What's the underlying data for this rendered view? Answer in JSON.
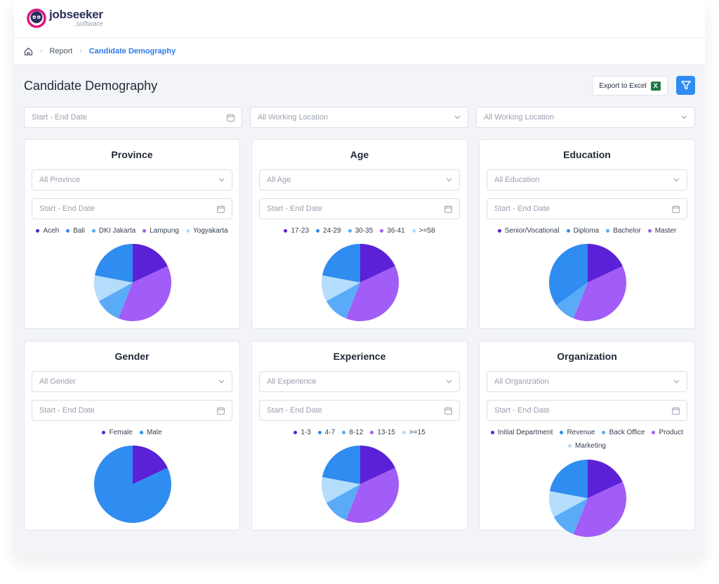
{
  "brand": {
    "name": "jobseeker",
    "sub": ".software"
  },
  "breadcrumb": {
    "items": [
      "Report",
      "Candidate Demography"
    ]
  },
  "page": {
    "title": "Candidate Demography",
    "export_label": "Export to Excel"
  },
  "filters": {
    "date_placeholder": "Start - End Date",
    "location1_placeholder": "All Working Location",
    "location2_placeholder": "All Working Location"
  },
  "colors": {
    "c1": "#5b21d6",
    "c2": "#a25cf7",
    "c3": "#5aabf7",
    "c4": "#b4dcfb",
    "c5": "#2f8cf0",
    "accent": "#2f7be8"
  },
  "cards": [
    {
      "title": "Province",
      "select_placeholder": "All Province",
      "date_placeholder": "Start - End Date",
      "legend": [
        {
          "label": "Aceh",
          "color": "#5b21d6"
        },
        {
          "label": "Bali",
          "color": "#2f8cf0"
        },
        {
          "label": "DKI Jakarta",
          "color": "#5aabf7"
        },
        {
          "label": "Lampung",
          "color": "#a25cf7"
        },
        {
          "label": "Yogyakarta",
          "color": "#b4dcfb"
        }
      ],
      "chart_data": {
        "type": "pie",
        "slices": [
          {
            "label": "Aceh",
            "value": 18,
            "color": "#5b21d6"
          },
          {
            "label": "Lampung",
            "value": 38,
            "color": "#a25cf7"
          },
          {
            "label": "DKI Jakarta",
            "value": 11,
            "color": "#5aabf7"
          },
          {
            "label": "Yogyakarta",
            "value": 11,
            "color": "#b4dcfb"
          },
          {
            "label": "Bali",
            "value": 22,
            "color": "#2f8cf0"
          }
        ]
      }
    },
    {
      "title": "Age",
      "select_placeholder": "All Age",
      "date_placeholder": "Start - End Date",
      "legend": [
        {
          "label": "17-23",
          "color": "#5b21d6"
        },
        {
          "label": "24-29",
          "color": "#2f8cf0"
        },
        {
          "label": "30-35",
          "color": "#5aabf7"
        },
        {
          "label": "36-41",
          "color": "#a25cf7"
        },
        {
          "label": ">=58",
          "color": "#b4dcfb"
        }
      ],
      "chart_data": {
        "type": "pie",
        "slices": [
          {
            "label": "17-23",
            "value": 18,
            "color": "#5b21d6"
          },
          {
            "label": "36-41",
            "value": 38,
            "color": "#a25cf7"
          },
          {
            "label": "30-35",
            "value": 11,
            "color": "#5aabf7"
          },
          {
            "label": ">=58",
            "value": 11,
            "color": "#b4dcfb"
          },
          {
            "label": "24-29",
            "value": 22,
            "color": "#2f8cf0"
          }
        ]
      }
    },
    {
      "title": "Education",
      "select_placeholder": "All Education",
      "date_placeholder": "Start - End Date",
      "legend": [
        {
          "label": "Senior/Vocational",
          "color": "#5b21d6"
        },
        {
          "label": "Diploma",
          "color": "#2f8cf0"
        },
        {
          "label": "Bachelor",
          "color": "#5aabf7"
        },
        {
          "label": "Master",
          "color": "#a25cf7"
        }
      ],
      "chart_data": {
        "type": "pie",
        "slices": [
          {
            "label": "Senior/Vocational",
            "value": 18,
            "color": "#5b21d6"
          },
          {
            "label": "Master",
            "value": 38,
            "color": "#a25cf7"
          },
          {
            "label": "Bachelor",
            "value": 9,
            "color": "#5aabf7"
          },
          {
            "label": "Diploma",
            "value": 35,
            "color": "#2f8cf0"
          }
        ]
      }
    },
    {
      "title": "Gender",
      "select_placeholder": "All Gender",
      "date_placeholder": "Start - End Date",
      "legend": [
        {
          "label": "Female",
          "color": "#5b21d6"
        },
        {
          "label": "Male",
          "color": "#2f8cf0"
        }
      ],
      "chart_data": {
        "type": "pie",
        "slices": [
          {
            "label": "Female",
            "value": 18,
            "color": "#5b21d6"
          },
          {
            "label": "Male",
            "value": 82,
            "color": "#2f8cf0"
          }
        ]
      }
    },
    {
      "title": "Experience",
      "select_placeholder": "All Experience",
      "date_placeholder": "Start - End Date",
      "legend": [
        {
          "label": "1-3",
          "color": "#5b21d6"
        },
        {
          "label": "4-7",
          "color": "#2f8cf0"
        },
        {
          "label": "8-12",
          "color": "#5aabf7"
        },
        {
          "label": "13-15",
          "color": "#a25cf7"
        },
        {
          "label": ">=15",
          "color": "#b4dcfb"
        }
      ],
      "chart_data": {
        "type": "pie",
        "slices": [
          {
            "label": "1-3",
            "value": 18,
            "color": "#5b21d6"
          },
          {
            "label": "13-15",
            "value": 38,
            "color": "#a25cf7"
          },
          {
            "label": "8-12",
            "value": 11,
            "color": "#5aabf7"
          },
          {
            "label": ">=15",
            "value": 11,
            "color": "#b4dcfb"
          },
          {
            "label": "4-7",
            "value": 22,
            "color": "#2f8cf0"
          }
        ]
      }
    },
    {
      "title": "Organization",
      "select_placeholder": "All Organization",
      "date_placeholder": "Start - End Date",
      "legend": [
        {
          "label": "Initial Department",
          "color": "#5b21d6"
        },
        {
          "label": "Revenue",
          "color": "#2f8cf0"
        },
        {
          "label": "Back Office",
          "color": "#5aabf7"
        },
        {
          "label": "Product",
          "color": "#a25cf7"
        },
        {
          "label": "Marketing",
          "color": "#b4dcfb"
        }
      ],
      "chart_data": {
        "type": "pie",
        "slices": [
          {
            "label": "Initial Department",
            "value": 18,
            "color": "#5b21d6"
          },
          {
            "label": "Product",
            "value": 38,
            "color": "#a25cf7"
          },
          {
            "label": "Back Office",
            "value": 11,
            "color": "#5aabf7"
          },
          {
            "label": "Marketing",
            "value": 11,
            "color": "#b4dcfb"
          },
          {
            "label": "Revenue",
            "value": 22,
            "color": "#2f8cf0"
          }
        ]
      }
    }
  ]
}
